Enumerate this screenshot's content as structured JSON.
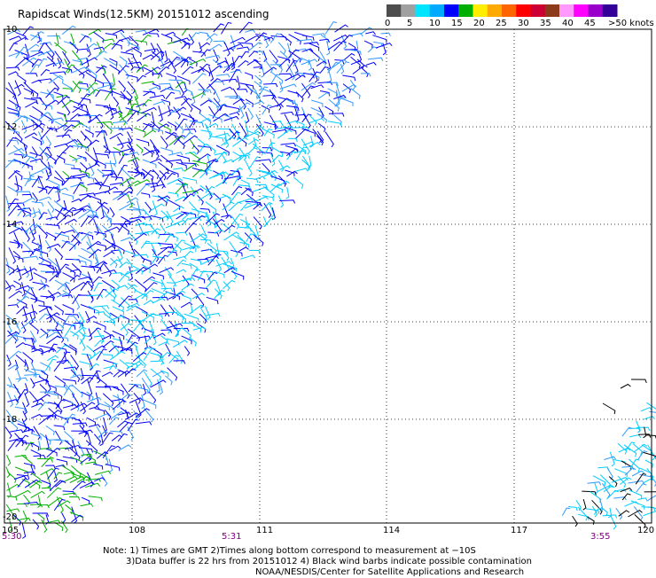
{
  "header": {
    "title": "Rapidscat Winds(12.5KM) 20151012 ascending"
  },
  "colorbar": {
    "labels": [
      "0",
      "5",
      "10",
      "15",
      "20",
      "25",
      "30",
      "35",
      "40",
      "45",
      ">50 knots"
    ],
    "colors": [
      "#4d4d4d",
      "#a0a0a0",
      "#00e5ff",
      "#00aaff",
      "#0000ff",
      "#00b000",
      "#ffee00",
      "#ffaa00",
      "#ff6600",
      "#ff0000",
      "#cc0033",
      "#8b3a1a",
      "#ff99ff",
      "#ff00ff",
      "#9900cc",
      "#330099"
    ]
  },
  "map": {
    "lat_labels": [
      "-10",
      "-12",
      "-14",
      "-16",
      "-18",
      "-20"
    ],
    "lon_labels": [
      "105",
      "108",
      "111",
      "114",
      "117",
      "120"
    ],
    "time_labels": [
      "5:30",
      "5:31",
      "3:55"
    ],
    "lat_range": [
      -20,
      -10
    ],
    "lon_range": [
      105,
      120
    ],
    "grid": "dotted",
    "barb_colors": {
      "light_wind": "#00ccff",
      "moderate_wind": "#0000ff",
      "strong_wind": "#00b000",
      "contaminated": "#000000"
    }
  },
  "notes": {
    "line1": "Note: 1) Times are GMT 2)Times along bottom correspond to measurement at −10S",
    "line2": "3)Data buffer is 22 hrs from 20151012 4) Black wind barbs indicate possible contamination",
    "line3": "NOAA/NESDIS/Center for Satellite Applications and Research"
  }
}
